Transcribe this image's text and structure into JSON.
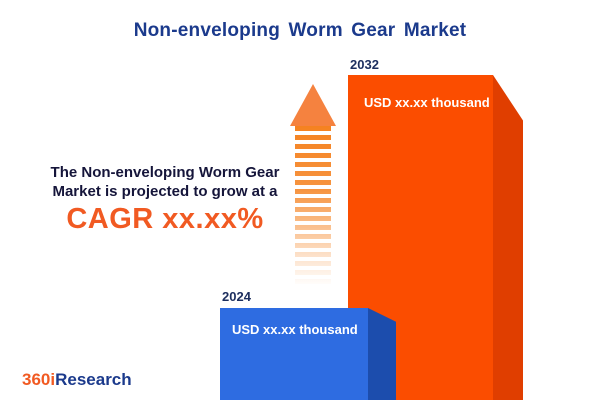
{
  "title": "Non-enveloping Worm Gear Market",
  "description": {
    "line1": "The Non-enveloping Worm Gear",
    "line2": "Market is projected to grow at a",
    "cagr": "CAGR xx.xx%"
  },
  "chart_data": {
    "type": "bar",
    "title": "Non-enveloping Worm Gear Market",
    "categories": [
      "2024",
      "2032"
    ],
    "values": [
      null,
      null
    ],
    "value_labels": [
      "USD xx.xx thousand",
      "USD xx.xx thousand"
    ],
    "relative_heights": [
      0.28,
      1.0
    ],
    "bar_colors": [
      "#2e6ce1",
      "#fb4d00"
    ],
    "bar_side_colors": [
      "#1c4dad",
      "#e03e00"
    ],
    "note": "values shown as xx.xx placeholders in source image"
  },
  "logo": {
    "part1": "360i",
    "part2": "Research"
  },
  "colors": {
    "title_navy": "#1b3a8c",
    "cagr_orange": "#f15a22",
    "arrow_orange": "#f58220",
    "bar_blue": "#2e6ce1",
    "bar_blue_side": "#1c4dad",
    "bar_orange": "#fb4d00",
    "bar_orange_side": "#e03e00",
    "background": "#ffffff"
  }
}
